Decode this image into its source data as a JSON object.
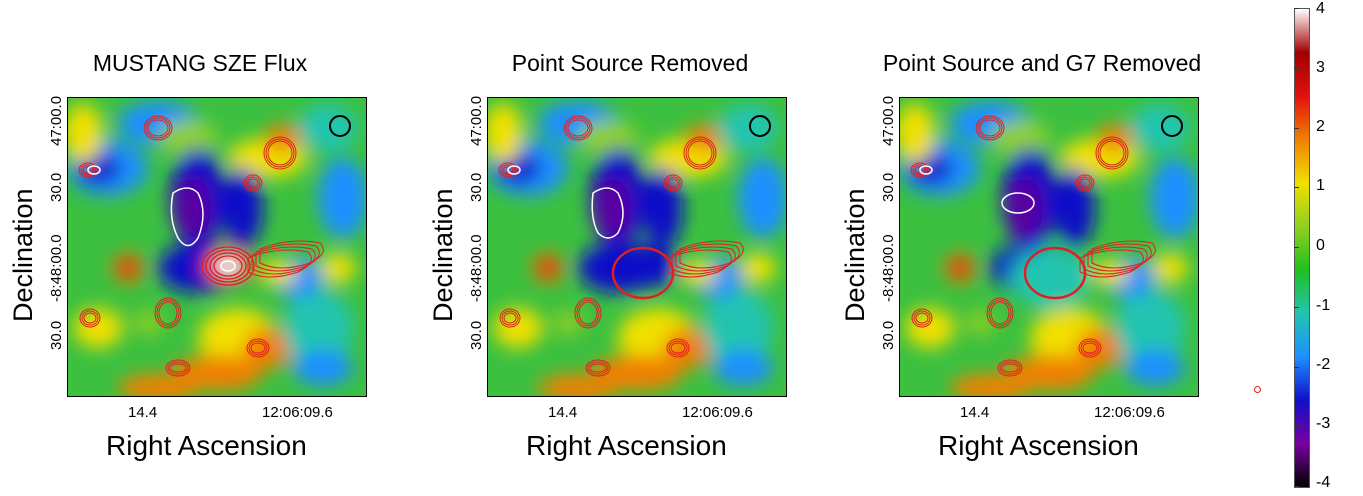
{
  "panels": [
    {
      "title": "MUSTANG SZE Flux",
      "variant": "full"
    },
    {
      "title": "Point Source Removed",
      "variant": "ps"
    },
    {
      "title": "Point Source and G7 Removed",
      "variant": "g7"
    }
  ],
  "axes": {
    "ylabel": "Declination",
    "xlabel": "Right Ascension",
    "yticks": [
      "47:00.0",
      "30.0",
      "-8:48:00.0",
      "30.0"
    ],
    "xticks": [
      "14.4",
      "12:06:09.6"
    ]
  },
  "colorbar": {
    "ticks": [
      "4",
      "3",
      "2",
      "1",
      "0",
      "-1",
      "-2",
      "-3",
      "-4"
    ],
    "range": [
      -4,
      4
    ],
    "colormap": [
      "#000000",
      "#7a00a0",
      "#1010c8",
      "#1e90ff",
      "#22c4b0",
      "#20c020",
      "#90d020",
      "#f0e000",
      "#f08000",
      "#e01010",
      "#a00000",
      "#ffffff"
    ]
  },
  "colors": {
    "contour_red": "#e02020",
    "contour_white": "#ffffff",
    "beam_circle": "#000000"
  }
}
